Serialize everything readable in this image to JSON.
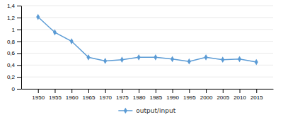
{
  "chart_data": {
    "type": "line",
    "x": [
      1950,
      1955,
      1960,
      1965,
      1970,
      1975,
      1980,
      1985,
      1990,
      1995,
      2000,
      2005,
      2010,
      2015
    ],
    "series": [
      {
        "name": "output/input",
        "color": "#5B9BD5",
        "marker": "diamond",
        "values": [
          1.21,
          0.95,
          0.8,
          0.53,
          0.47,
          0.49,
          0.53,
          0.53,
          0.5,
          0.46,
          0.53,
          0.49,
          0.5,
          0.45
        ]
      }
    ],
    "xlim": [
      1945,
      2020
    ],
    "xticks": [
      1950,
      1955,
      1960,
      1965,
      1970,
      1975,
      1980,
      1985,
      1990,
      1995,
      2000,
      2005,
      2010,
      2015
    ],
    "ylim": [
      0,
      1.4
    ],
    "yticks": [
      0,
      {
        "value": 0.2,
        "label": "0,2"
      },
      {
        "value": 0.4,
        "label": "0,4"
      },
      {
        "value": 0.6,
        "label": "0,6"
      },
      {
        "value": 0.8,
        "label": "0,8"
      },
      1,
      {
        "value": 1.2,
        "label": "1,2"
      },
      {
        "value": 1.4,
        "label": "1,4"
      }
    ],
    "grid": true,
    "legend": "bottom"
  }
}
